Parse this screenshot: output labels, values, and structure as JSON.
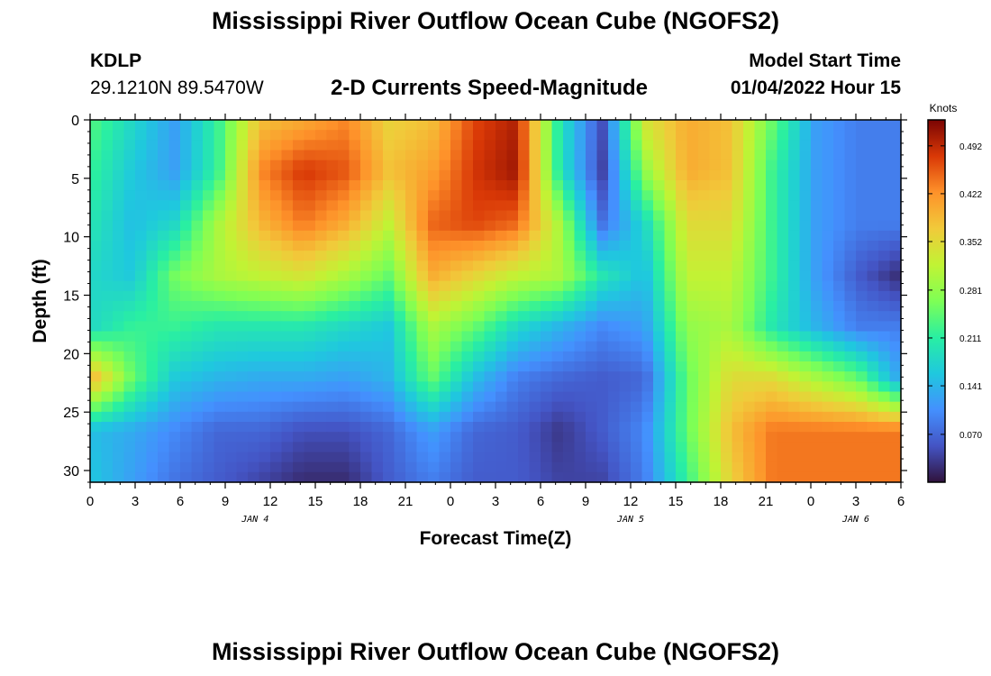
{
  "header": {
    "title": "Mississippi River Outflow Ocean Cube (NGOFS2)",
    "station_id": "KDLP",
    "coordinates": "29.1210N  89.5470W",
    "subtitle": "2-D Currents Speed-Magnitude",
    "model_start_label": "Model Start Time",
    "model_start_value": "01/04/2022 Hour 15"
  },
  "footer": {
    "title": "Mississippi River Outflow Ocean Cube (NGOFS2)"
  },
  "chart_data": {
    "type": "heatmap",
    "title": "2-D Currents Speed-Magnitude",
    "xlabel": "Forecast Time(Z)",
    "ylabel": "Depth (ft)",
    "x_tick_labels": [
      "0",
      "3",
      "6",
      "9",
      "12",
      "15",
      "18",
      "21",
      "0",
      "3",
      "6",
      "9",
      "12",
      "15",
      "18",
      "21",
      "0",
      "3",
      "6"
    ],
    "x_hours": [
      0,
      3,
      6,
      9,
      12,
      15,
      18,
      21,
      24,
      27,
      30,
      33,
      36,
      39,
      42,
      45,
      48,
      51,
      54
    ],
    "xlim": [
      0,
      54
    ],
    "date_labels": [
      {
        "text": "JAN 4",
        "hour": 11
      },
      {
        "text": "JAN 5",
        "hour": 36
      },
      {
        "text": "JAN 6",
        "hour": 51
      }
    ],
    "y_ticks": [
      0,
      5,
      10,
      15,
      20,
      25,
      30
    ],
    "ylim": [
      0,
      31
    ],
    "y_inverted": true,
    "colorbar": {
      "title": "Knots",
      "ticks": [
        0.492,
        0.422,
        0.352,
        0.281,
        0.211,
        0.141,
        0.07
      ],
      "ticks_text": [
        "0.492",
        "0.422",
        "0.352",
        "0.281",
        "0.211",
        "0.141",
        "0.070"
      ],
      "range": [
        0.0,
        0.53
      ],
      "colormap": "turbo"
    },
    "grid_x_hours": [
      0,
      6,
      12,
      18,
      24,
      30,
      36,
      42,
      48,
      54
    ],
    "grid_y_depths": [
      0,
      5,
      10,
      15,
      20,
      25,
      31
    ],
    "values": [
      [
        0.24,
        0.18,
        0.12,
        0.22,
        0.38,
        0.4,
        0.43,
        0.36,
        0.38,
        0.47,
        0.5,
        0.2,
        0.05,
        0.34,
        0.4,
        0.38,
        0.25,
        0.12,
        0.09,
        0.09
      ],
      [
        0.22,
        0.16,
        0.12,
        0.22,
        0.43,
        0.48,
        0.46,
        0.38,
        0.41,
        0.48,
        0.51,
        0.2,
        0.04,
        0.28,
        0.4,
        0.38,
        0.22,
        0.12,
        0.09,
        0.09
      ],
      [
        0.2,
        0.15,
        0.18,
        0.3,
        0.39,
        0.44,
        0.4,
        0.32,
        0.45,
        0.47,
        0.45,
        0.3,
        0.08,
        0.18,
        0.35,
        0.35,
        0.22,
        0.12,
        0.09,
        0.09
      ],
      [
        0.18,
        0.16,
        0.26,
        0.3,
        0.32,
        0.34,
        0.3,
        0.25,
        0.4,
        0.36,
        0.32,
        0.3,
        0.2,
        0.15,
        0.32,
        0.32,
        0.22,
        0.12,
        0.06,
        0.02
      ],
      [
        0.18,
        0.22,
        0.22,
        0.2,
        0.2,
        0.2,
        0.18,
        0.16,
        0.3,
        0.25,
        0.18,
        0.14,
        0.1,
        0.12,
        0.28,
        0.3,
        0.2,
        0.14,
        0.09,
        0.09
      ],
      [
        0.4,
        0.25,
        0.16,
        0.14,
        0.13,
        0.13,
        0.12,
        0.14,
        0.25,
        0.15,
        0.09,
        0.07,
        0.06,
        0.07,
        0.25,
        0.35,
        0.35,
        0.3,
        0.25,
        0.12
      ],
      [
        0.15,
        0.13,
        0.1,
        0.07,
        0.07,
        0.05,
        0.05,
        0.07,
        0.12,
        0.07,
        0.06,
        0.03,
        0.06,
        0.1,
        0.25,
        0.38,
        0.44,
        0.44,
        0.44,
        0.44
      ],
      [
        0.16,
        0.12,
        0.08,
        0.06,
        0.04,
        0.02,
        0.02,
        0.06,
        0.09,
        0.06,
        0.06,
        0.04,
        0.04,
        0.09,
        0.22,
        0.36,
        0.44,
        0.44,
        0.44,
        0.44
      ]
    ]
  }
}
